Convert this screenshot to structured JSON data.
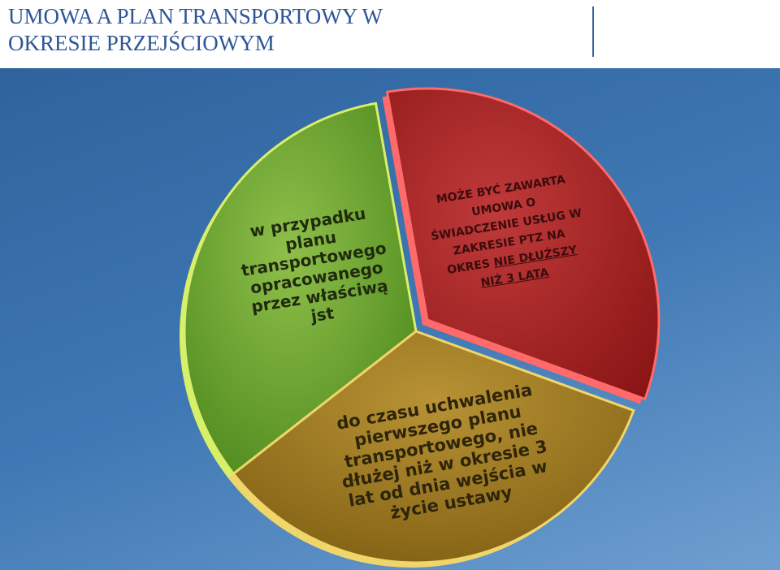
{
  "header": {
    "title_lines": [
      "UMOWA A PLAN TRANSPORTOWY W",
      "OKRESIE PRZEJŚCIOWYM"
    ]
  },
  "segments": [
    {
      "text": "w przypadku planu transportowego opracowanego przez właściwą jst"
    },
    {
      "text": "MOŻE BYĆ ZAWARTA UMOWA O ŚWIADCZENIE USŁUG W ZAKRESIE PTZ NA OKRES",
      "text_underlined": "NIE DŁUŻSZY NIŻ 3 LATA"
    },
    {
      "text": "do czasu uchwalenia pierwszego planu transportowego, nie dłużej niż w okresie 3 lat od dnia wejścia w życie ustawy"
    }
  ]
}
